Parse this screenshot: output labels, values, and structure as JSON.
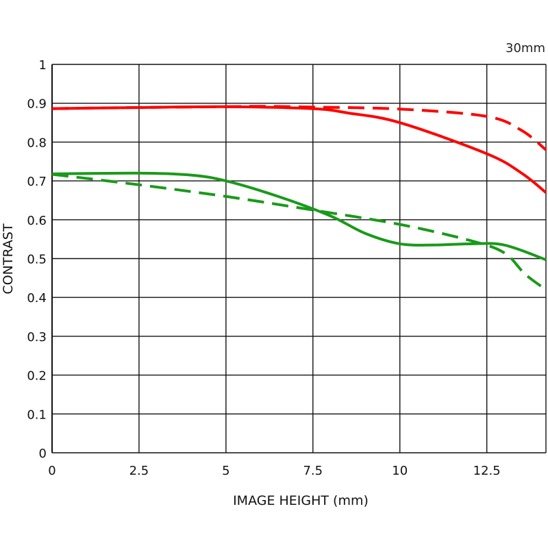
{
  "chart_data": {
    "type": "line",
    "title": "",
    "annotation": "30mm",
    "xlabel": "IMAGE HEIGHT (mm)",
    "ylabel": "CONTRAST",
    "xlim": [
      0,
      14.2
    ],
    "ylim": [
      0,
      1
    ],
    "x_ticks": [
      0,
      2.5,
      5,
      7.5,
      10,
      12.5
    ],
    "x_tick_labels": [
      "0",
      "2.5",
      "5",
      "7.5",
      "10",
      "12.5"
    ],
    "y_ticks": [
      0,
      0.1,
      0.2,
      0.3,
      0.4,
      0.5,
      0.6,
      0.7,
      0.8,
      0.9,
      1
    ],
    "y_tick_labels": [
      "0",
      "0.1",
      "0.2",
      "0.3",
      "0.4",
      "0.5",
      "0.6",
      "0.7",
      "0.8",
      "0.9",
      "1"
    ],
    "grid": true,
    "series": [
      {
        "color": "#ff0000",
        "dash": "solid",
        "x": [
          0,
          2.5,
          5,
          7.5,
          8.5,
          10,
          12.5,
          13.5,
          14.2
        ],
        "y": [
          0.886,
          0.889,
          0.891,
          0.886,
          0.875,
          0.85,
          0.77,
          0.72,
          0.67
        ]
      },
      {
        "color": "#ff0000",
        "dash": "dashed",
        "x": [
          0,
          2.5,
          5,
          6,
          7.5,
          10,
          12.5,
          13.5,
          14.2
        ],
        "y": [
          0.886,
          0.889,
          0.891,
          0.892,
          0.89,
          0.885,
          0.866,
          0.83,
          0.78
        ]
      },
      {
        "color": "#1a9a1a",
        "dash": "solid",
        "x": [
          0,
          2.5,
          4,
          5,
          6.5,
          8,
          9,
          10,
          11,
          12,
          13,
          14.2
        ],
        "y": [
          0.718,
          0.72,
          0.715,
          0.7,
          0.66,
          0.61,
          0.565,
          0.538,
          0.535,
          0.538,
          0.535,
          0.497
        ]
      },
      {
        "color": "#1a9a1a",
        "dash": "dashed",
        "x": [
          0,
          2.5,
          5,
          7.5,
          10,
          12,
          13,
          13.6,
          14.2
        ],
        "y": [
          0.717,
          0.69,
          0.66,
          0.625,
          0.588,
          0.547,
          0.515,
          0.46,
          0.42
        ]
      }
    ]
  }
}
